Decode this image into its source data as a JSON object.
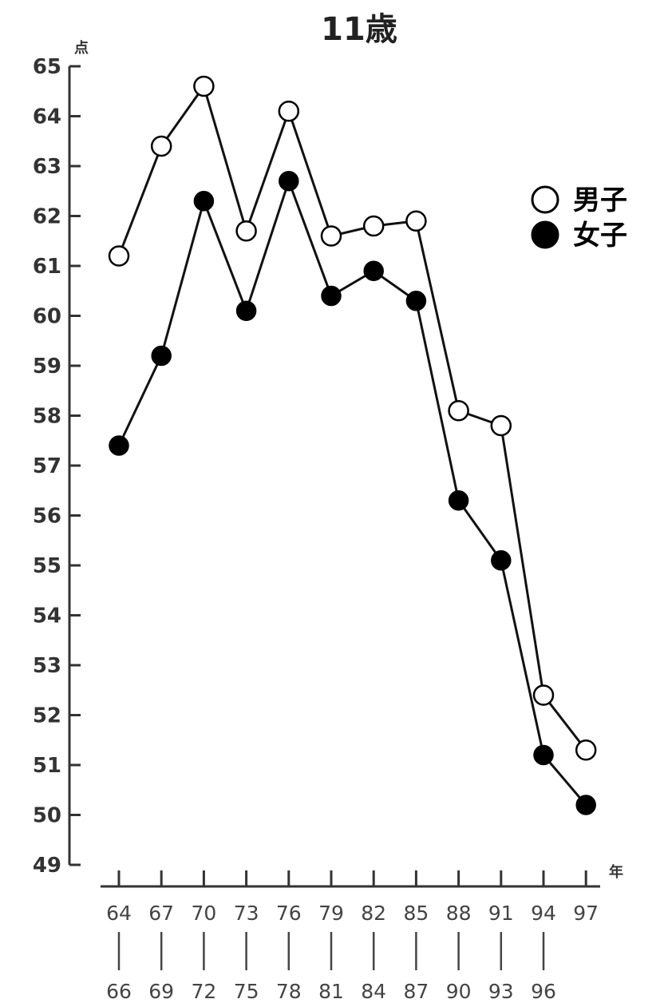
{
  "chart_data": {
    "type": "line",
    "title": "11歳",
    "ylabel": "点",
    "xlabel": "年",
    "ylim": [
      49,
      65
    ],
    "yticks": [
      49,
      50,
      51,
      52,
      53,
      54,
      55,
      56,
      57,
      58,
      59,
      60,
      61,
      62,
      63,
      64,
      65
    ],
    "categories_start": [
      "64",
      "67",
      "70",
      "73",
      "76",
      "79",
      "82",
      "85",
      "88",
      "91",
      "94",
      "97"
    ],
    "categories_end": [
      "66",
      "69",
      "72",
      "75",
      "78",
      "81",
      "84",
      "87",
      "90",
      "93",
      "96",
      ""
    ],
    "series": [
      {
        "name": "男子",
        "marker": "open-circle",
        "values": [
          61.2,
          63.4,
          64.6,
          61.7,
          64.1,
          61.6,
          61.8,
          61.9,
          58.1,
          57.8,
          52.4,
          51.3
        ]
      },
      {
        "name": "女子",
        "marker": "filled-circle",
        "values": [
          57.4,
          59.2,
          62.3,
          60.1,
          62.7,
          60.4,
          60.9,
          60.3,
          56.3,
          55.1,
          51.2,
          50.2
        ]
      }
    ],
    "legend_position": "right",
    "grid": false
  }
}
